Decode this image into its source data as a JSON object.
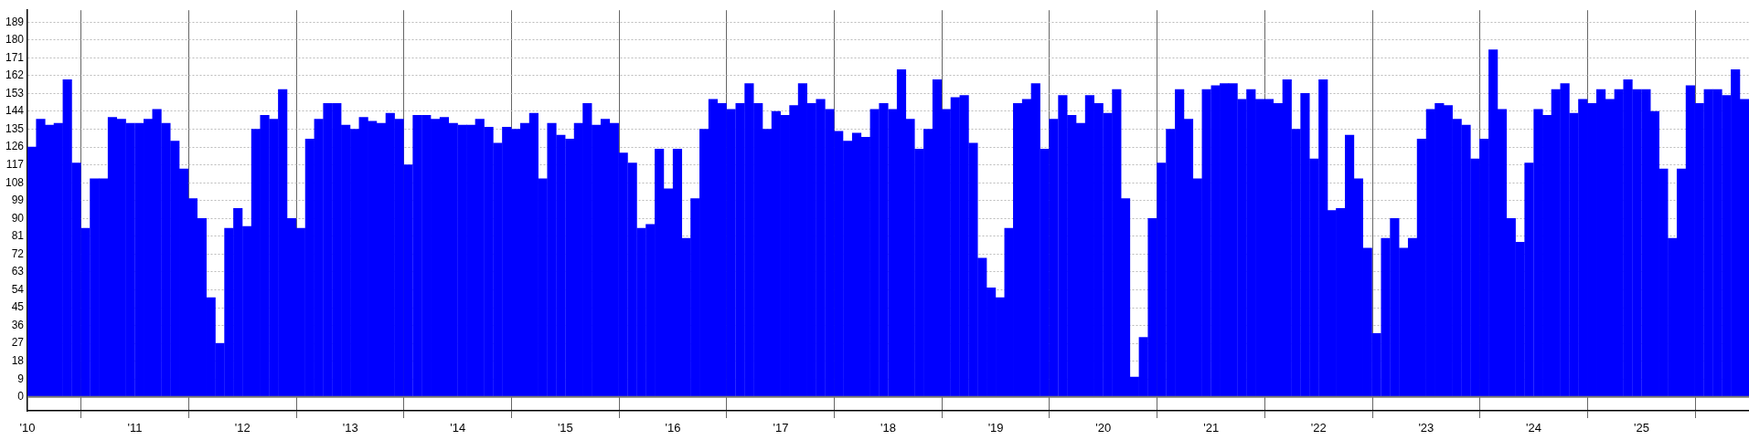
{
  "chart_data": {
    "type": "bar",
    "color": "#0000ff",
    "grid": true,
    "legend": false,
    "x": [
      "2010-01",
      "2010-02",
      "2010-03",
      "2010-04",
      "2010-05",
      "2010-06",
      "2010-07",
      "2010-08",
      "2010-09",
      "2010-10",
      "2010-11",
      "2010-12",
      "2011-01",
      "2011-02",
      "2011-03",
      "2011-04",
      "2011-05",
      "2011-06",
      "2011-07",
      "2011-08",
      "2011-09",
      "2011-10",
      "2011-11",
      "2011-12",
      "2012-01",
      "2012-02",
      "2012-03",
      "2012-04",
      "2012-05",
      "2012-06",
      "2012-07",
      "2012-08",
      "2012-09",
      "2012-10",
      "2012-11",
      "2012-12",
      "2013-01",
      "2013-02",
      "2013-03",
      "2013-04",
      "2013-05",
      "2013-06",
      "2013-07",
      "2013-08",
      "2013-09",
      "2013-10",
      "2013-11",
      "2013-12",
      "2014-01",
      "2014-02",
      "2014-03",
      "2014-04",
      "2014-05",
      "2014-06",
      "2014-07",
      "2014-08",
      "2014-09",
      "2014-10",
      "2014-11",
      "2014-12",
      "2015-01",
      "2015-02",
      "2015-03",
      "2015-04",
      "2015-05",
      "2015-06",
      "2015-07",
      "2015-08",
      "2015-09",
      "2015-10",
      "2015-11",
      "2015-12",
      "2016-01",
      "2016-02",
      "2016-03",
      "2016-04",
      "2016-05",
      "2016-06",
      "2016-07",
      "2016-08",
      "2016-09",
      "2016-10",
      "2016-11",
      "2016-12",
      "2017-01",
      "2017-02",
      "2017-03",
      "2017-04",
      "2017-05",
      "2017-06",
      "2017-07",
      "2017-08",
      "2017-09",
      "2017-10",
      "2017-11",
      "2017-12",
      "2018-01",
      "2018-02",
      "2018-03",
      "2018-04",
      "2018-05",
      "2018-06",
      "2018-07",
      "2018-08",
      "2018-09",
      "2018-10",
      "2018-11",
      "2018-12",
      "2019-01",
      "2019-02",
      "2019-03",
      "2019-04",
      "2019-05",
      "2019-06",
      "2019-07",
      "2019-08",
      "2019-09",
      "2019-10",
      "2019-11",
      "2019-12",
      "2020-01",
      "2020-02",
      "2020-03",
      "2020-04",
      "2020-05",
      "2020-06",
      "2020-07",
      "2020-08",
      "2020-09",
      "2020-10",
      "2020-11",
      "2020-12",
      "2021-01",
      "2021-02",
      "2021-03",
      "2021-04",
      "2021-05",
      "2021-06",
      "2021-07",
      "2021-08",
      "2021-09",
      "2021-10",
      "2021-11",
      "2021-12",
      "2022-01",
      "2022-02",
      "2022-03",
      "2022-04",
      "2022-05",
      "2022-06",
      "2022-07",
      "2022-08",
      "2022-09",
      "2022-10",
      "2022-11",
      "2022-12",
      "2023-01",
      "2023-02",
      "2023-03",
      "2023-04",
      "2023-05",
      "2023-06",
      "2023-07",
      "2023-08",
      "2023-09",
      "2023-10",
      "2023-11",
      "2023-12",
      "2024-01",
      "2024-02",
      "2024-03",
      "2024-04",
      "2024-05",
      "2024-06",
      "2024-07",
      "2024-08",
      "2024-09",
      "2024-10",
      "2024-11",
      "2024-12",
      "2025-01",
      "2025-02",
      "2025-03",
      "2025-04",
      "2025-05",
      "2025-06",
      "2025-07",
      "2025-08",
      "2025-09",
      "2025-10",
      "2025-11",
      "2025-12"
    ],
    "values": [
      126,
      140,
      137,
      138,
      160,
      118,
      85,
      110,
      110,
      141,
      140,
      138,
      138,
      140,
      145,
      138,
      129,
      115,
      100,
      90,
      50,
      27,
      85,
      95,
      86,
      135,
      142,
      140,
      155,
      90,
      85,
      130,
      140,
      148,
      148,
      137,
      135,
      141,
      139,
      138,
      143,
      140,
      117,
      142,
      142,
      140,
      141,
      138,
      137,
      137,
      140,
      136,
      128,
      136,
      135,
      138,
      143,
      110,
      138,
      132,
      130,
      138,
      148,
      137,
      140,
      138,
      123,
      118,
      85,
      87,
      125,
      105,
      125,
      80,
      100,
      135,
      150,
      148,
      145,
      148,
      158,
      148,
      135,
      144,
      142,
      147,
      158,
      148,
      150,
      145,
      134,
      129,
      133,
      131,
      145,
      148,
      145,
      165,
      140,
      125,
      135,
      160,
      145,
      151,
      152,
      128,
      70,
      55,
      50,
      85,
      148,
      150,
      158,
      125,
      140,
      152,
      142,
      138,
      152,
      148,
      143,
      155,
      100,
      10,
      30,
      90,
      118,
      135,
      155,
      140,
      110,
      155,
      157,
      158,
      158,
      150,
      155,
      150,
      150,
      148,
      160,
      135,
      153,
      120,
      160,
      94,
      95,
      132,
      110,
      75,
      32,
      80,
      90,
      75,
      80,
      130,
      145,
      148,
      147,
      140,
      137,
      120,
      130,
      175,
      145,
      90,
      78,
      118,
      145,
      142,
      155,
      158,
      143,
      150,
      148,
      155,
      150,
      155,
      160,
      155,
      155,
      144,
      115,
      80,
      115,
      157,
      148,
      155,
      155,
      152,
      165,
      150
    ],
    "xlim": [
      "2010",
      "2026"
    ],
    "xticks": [
      {
        "value": "2010",
        "label": "'10"
      },
      {
        "value": "2011",
        "label": "'11"
      },
      {
        "value": "2012",
        "label": "'12"
      },
      {
        "value": "2013",
        "label": "'13"
      },
      {
        "value": "2014",
        "label": "'14"
      },
      {
        "value": "2015",
        "label": "'15"
      },
      {
        "value": "2016",
        "label": "'16"
      },
      {
        "value": "2017",
        "label": "'17"
      },
      {
        "value": "2018",
        "label": "'18"
      },
      {
        "value": "2019",
        "label": "'19"
      },
      {
        "value": "2020",
        "label": "'20"
      },
      {
        "value": "2021",
        "label": "'21"
      },
      {
        "value": "2022",
        "label": "'22"
      },
      {
        "value": "2023",
        "label": "'23"
      },
      {
        "value": "2024",
        "label": "'24"
      },
      {
        "value": "2025",
        "label": "'25"
      }
    ],
    "ylim": [
      -7,
      195
    ],
    "ref_lines": [
      {
        "axis": "y",
        "value": 0,
        "color": "#777777"
      }
    ],
    "yticks": [
      0,
      9,
      18,
      27,
      36,
      45,
      54,
      63,
      72,
      81,
      90,
      99,
      108,
      117,
      126,
      135,
      144,
      153,
      162,
      171,
      180,
      189
    ]
  }
}
